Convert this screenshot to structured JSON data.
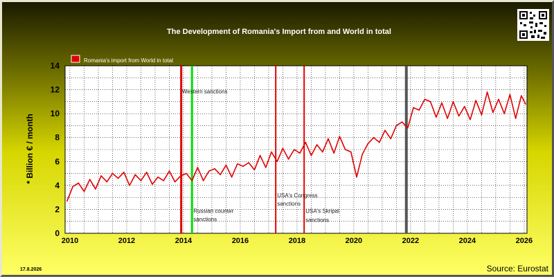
{
  "chart_data": {
    "type": "line",
    "title": "The Development of Romania's Import from   and World in total",
    "ylabel": "* Billion € / month",
    "xlabel": "",
    "xlim": [
      2009.83,
      2026.1
    ],
    "ylim": [
      0,
      14
    ],
    "y_ticks": [
      0,
      2,
      4,
      6,
      8,
      10,
      12,
      14
    ],
    "x_ticks": [
      2010,
      2012,
      2014,
      2016,
      2018,
      2020,
      2022,
      2024,
      2026
    ],
    "grid": true,
    "legend_position": "top-left",
    "series": [
      {
        "name": "Romania's import from World in total",
        "color": "#e00000",
        "x": [
          2009.9,
          2010.1,
          2010.3,
          2010.5,
          2010.7,
          2010.9,
          2011.1,
          2011.3,
          2011.5,
          2011.7,
          2011.9,
          2012.1,
          2012.3,
          2012.5,
          2012.7,
          2012.9,
          2013.1,
          2013.3,
          2013.5,
          2013.7,
          2013.9,
          2014.1,
          2014.3,
          2014.5,
          2014.7,
          2014.9,
          2015.1,
          2015.3,
          2015.5,
          2015.7,
          2015.9,
          2016.1,
          2016.3,
          2016.5,
          2016.7,
          2016.9,
          2017.1,
          2017.3,
          2017.5,
          2017.7,
          2017.9,
          2018.1,
          2018.3,
          2018.5,
          2018.7,
          2018.9,
          2019.1,
          2019.3,
          2019.5,
          2019.7,
          2019.9,
          2020.1,
          2020.3,
          2020.5,
          2020.7,
          2020.9,
          2021.1,
          2021.3,
          2021.5,
          2021.7,
          2021.9,
          2022.1,
          2022.3,
          2022.5,
          2022.7,
          2022.9,
          2023.1,
          2023.3,
          2023.5,
          2023.7,
          2023.9,
          2024.1,
          2024.3,
          2024.5,
          2024.7,
          2024.9,
          2025.1,
          2025.3,
          2025.5,
          2025.7,
          2025.9,
          2026.05
        ],
        "values": [
          2.7,
          3.9,
          4.2,
          3.5,
          4.5,
          3.7,
          4.8,
          4.3,
          5.0,
          4.6,
          5.1,
          4.0,
          4.9,
          4.4,
          5.1,
          4.1,
          4.7,
          4.4,
          5.2,
          4.3,
          4.8,
          5.0,
          4.4,
          5.5,
          4.4,
          5.2,
          5.4,
          4.9,
          5.7,
          4.7,
          5.8,
          5.6,
          5.9,
          5.3,
          6.5,
          5.5,
          6.8,
          6.0,
          7.1,
          6.2,
          7.0,
          6.7,
          7.6,
          6.5,
          7.4,
          6.8,
          7.9,
          6.7,
          8.1,
          7.0,
          6.8,
          4.7,
          6.6,
          7.5,
          8.0,
          7.6,
          8.6,
          7.9,
          9.0,
          9.3,
          8.8,
          10.5,
          10.3,
          11.2,
          11.0,
          9.7,
          10.9,
          9.6,
          11.0,
          9.8,
          10.6,
          9.5,
          11.1,
          9.9,
          11.8,
          10.1,
          11.2,
          10.0,
          11.6,
          9.6,
          11.5,
          10.8
        ]
      }
    ],
    "vlines": [
      {
        "x": 2013.92,
        "color": "#e00000",
        "width": 3
      },
      {
        "x": 2014.3,
        "color": "#00e000",
        "width": 3
      },
      {
        "x": 2017.25,
        "color": "#e00000",
        "width": 2
      },
      {
        "x": 2018.25,
        "color": "#e00000",
        "width": 2
      },
      {
        "x": 2021.85,
        "color": "#555555",
        "width": 4
      }
    ],
    "annotations": [
      {
        "text": "Western sanctions",
        "x": 2013.95,
        "y": 11.7
      },
      {
        "text": "Russian counter",
        "x": 2014.35,
        "y": 1.7
      },
      {
        "text": "sanctions",
        "x": 2014.35,
        "y": 1.0
      },
      {
        "text": "USA's Congress",
        "x": 2017.3,
        "y": 3.0
      },
      {
        "text": "sanctions",
        "x": 2017.3,
        "y": 2.3
      },
      {
        "text": "USA's Skripal",
        "x": 2018.3,
        "y": 1.7
      },
      {
        "text": "sanctions",
        "x": 2018.3,
        "y": 0.95
      }
    ]
  },
  "footer": {
    "date": "17.8.2026",
    "source": "Source: Eurostat"
  },
  "qr_icon": "qr-code-icon"
}
